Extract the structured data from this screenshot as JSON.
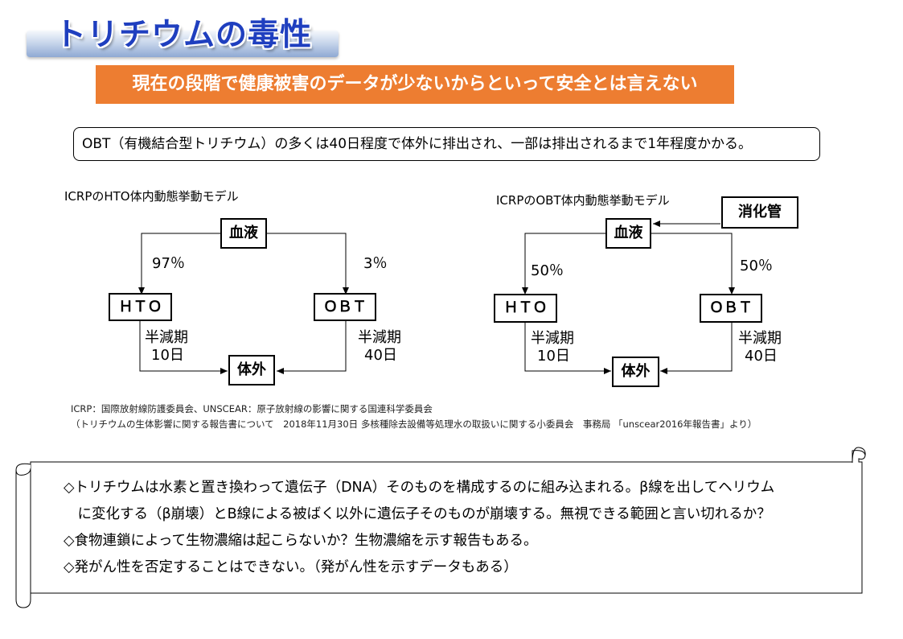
{
  "title": "トリチウムの毒性",
  "banner": "現在の段階で健康被害のデータが少ないからといって安全とは言えない",
  "note": "OBT（有機結合型トリチウム）の多くは40日程度で体外に排出され、一部は排出されるまで1年程度かかる。",
  "hto_model": {
    "label": "ICRPのHTO体内動態挙動モデル",
    "blood": "血液",
    "hto": "ＨＴＯ",
    "obt": "ＯＢＴ",
    "excretion": "体外",
    "pct_hto": "97％",
    "pct_obt": "3％",
    "hto_halflife_label": "半減期",
    "hto_halflife_value": "10日",
    "obt_halflife_label": "半減期",
    "obt_halflife_value": "40日"
  },
  "obt_model": {
    "label": "ICRPのOBT体内動態挙動モデル",
    "digestive": "消化管",
    "blood": "血液",
    "hto": "ＨＴＯ",
    "obt": "ＯＢＴ",
    "excretion": "体外",
    "pct_hto": "50％",
    "pct_obt": "50％",
    "hto_halflife_label": "半減期",
    "hto_halflife_value": "10日",
    "obt_halflife_label": "半減期",
    "obt_halflife_value": "40日"
  },
  "footnotes": [
    "ICRP：国際放射線防護委員会、UNSCEAR：原子放射線の影響に関する国連科学委員会",
    "（トリチウムの生体影響に関する報告書について　2018年11月30日 多核種除去設備等処理水の取扱いに関する小委員会　事務局 「unscear2016年報告書」より）"
  ],
  "points": [
    "◇トリチウムは水素と置き換わって遺伝子（DNA）そのものを構成するのに組み込まれる。β線を出してヘリウム",
    "　に変化する（β崩壊）とB線による被ばく以外に遺伝子そのものが崩壊する。無視できる範囲と言い切れるか？",
    "◇食物連鎖によって生物濃縮は起こらないか？生物濃縮を示す報告もある。",
    "◇発がん性を否定することはできない。（発がん性を示すデータもある）"
  ]
}
